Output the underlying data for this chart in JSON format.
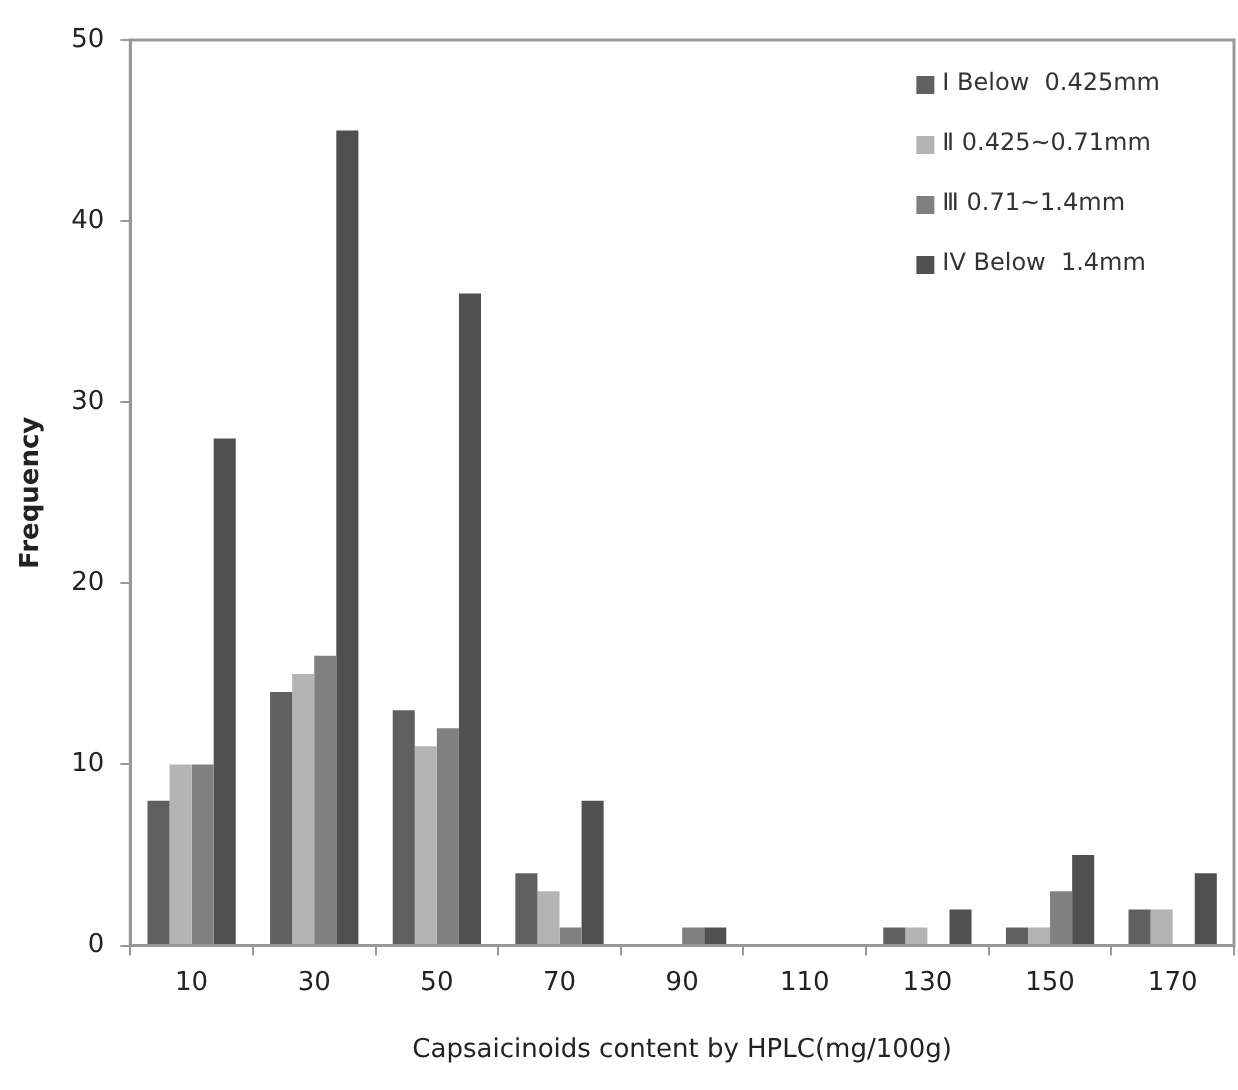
{
  "chart_data": {
    "type": "bar",
    "xlabel": "Capsaicinoids content by HPLC(mg/100g)",
    "ylabel": "Frequency",
    "categories": [
      "10",
      "30",
      "50",
      "70",
      "90",
      "110",
      "130",
      "150",
      "170"
    ],
    "series": [
      {
        "name": "I Below  0.425mm",
        "color": "#606060",
        "values": [
          8,
          14,
          13,
          4,
          0,
          0,
          1,
          1,
          2
        ]
      },
      {
        "name": "Ⅱ 0.425~0.71mm",
        "color": "#b4b4b4",
        "values": [
          10,
          15,
          11,
          3,
          0,
          0,
          1,
          1,
          2
        ]
      },
      {
        "name": "Ⅲ 0.71~1.4mm",
        "color": "#808080",
        "values": [
          10,
          16,
          12,
          1,
          1,
          0,
          0,
          3,
          0
        ]
      },
      {
        "name": "IV Below  1.4mm",
        "color": "#505050",
        "values": [
          28,
          45,
          36,
          8,
          1,
          0,
          2,
          5,
          4
        ]
      }
    ],
    "ylim": [
      0,
      50
    ],
    "yticks": [
      0,
      10,
      20,
      30,
      40,
      50
    ],
    "grid": false,
    "legend": "top right"
  }
}
